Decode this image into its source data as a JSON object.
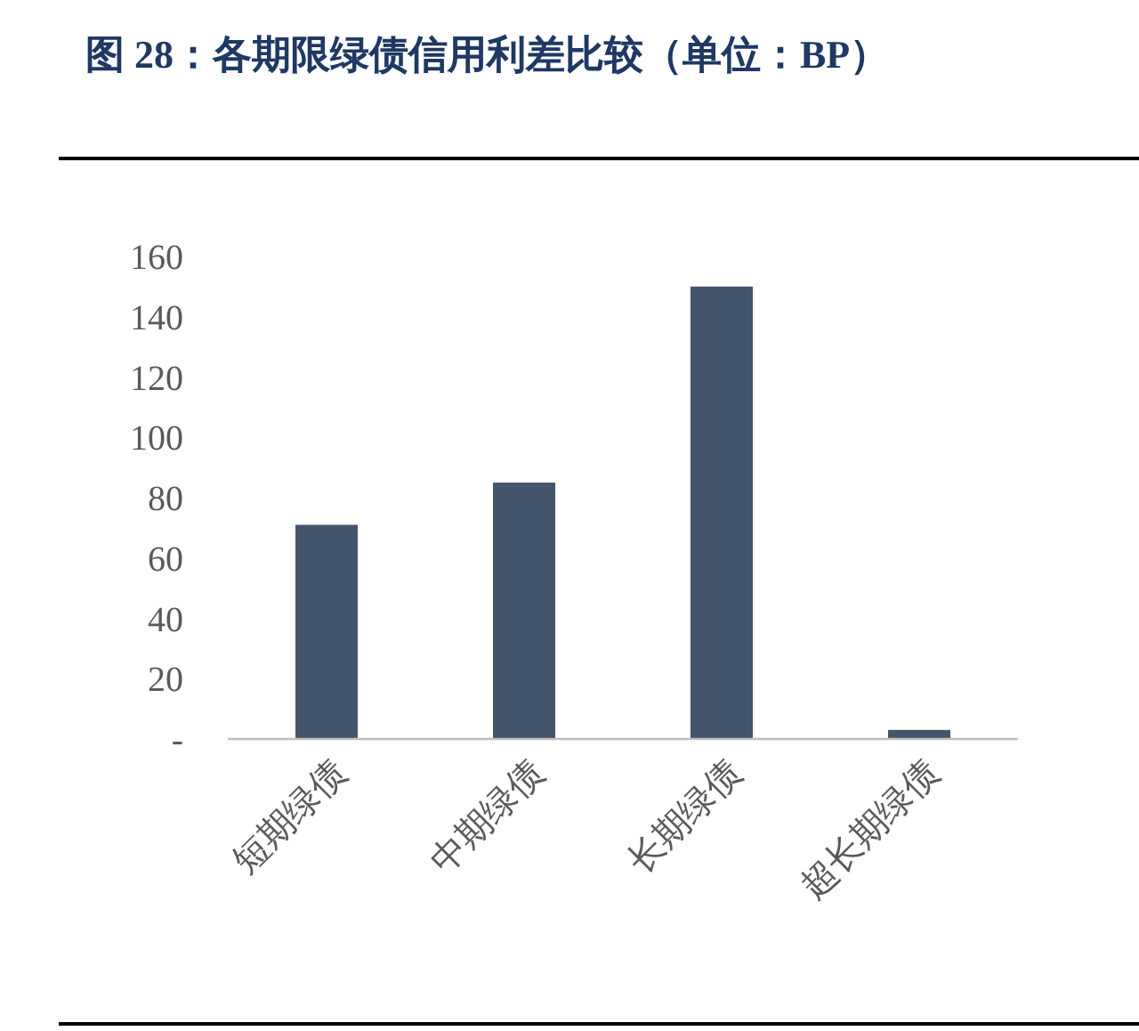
{
  "chart_data": {
    "type": "bar",
    "title": "图 28：各期限绿债信用利差比较（单位：BP）",
    "categories": [
      "短期绿债",
      "中期绿债",
      "长期绿债",
      "超长期绿债"
    ],
    "values": [
      71,
      85,
      150,
      3
    ],
    "color": "#44546a",
    "ylim": [
      0,
      160
    ],
    "yticks": [
      {
        "value": 0,
        "label": "-"
      },
      20,
      40,
      60,
      80,
      100,
      120,
      140,
      160
    ],
    "grid": false
  }
}
